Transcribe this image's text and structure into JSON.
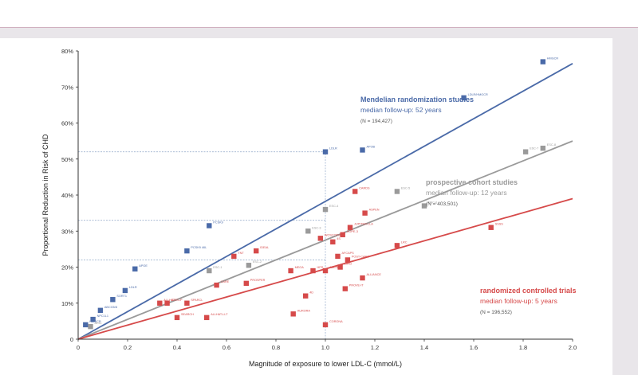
{
  "chart_data": {
    "type": "scatter",
    "title": "",
    "xlabel": "Magnitude of exposure to lower LDL-C (mmol/L)",
    "ylabel": "Proportional Reduction in Risk of CHD",
    "x_ticks": [
      "0",
      "0.2",
      "0.4",
      "0.6",
      "0.8",
      "1.0",
      "1.2",
      "1.4",
      "1.6",
      "1.8",
      "2.0"
    ],
    "x_values": [
      0,
      0.2,
      0.4,
      0.6,
      0.8,
      1.0,
      1.2,
      1.4,
      1.6,
      1.8,
      2.0
    ],
    "y_ticks": [
      "0",
      "10%",
      "20%",
      "30%",
      "40%",
      "50%",
      "60%",
      "70%",
      "80%"
    ],
    "xlim": [
      0,
      2.0
    ],
    "ylim": [
      0,
      80
    ],
    "grid": false,
    "series": [
      {
        "group": "Mendelian randomization studies",
        "followup": "median follow-up: 52 years",
        "n": "(N = 194,427)",
        "color": "#4a6aa8",
        "fit_end": [
          2.0,
          76.5
        ],
        "points": [
          {
            "x": 0.03,
            "y": 4.0,
            "label": "HMGCR"
          },
          {
            "x": 0.06,
            "y": 5.5,
            "label": "NPC1L1"
          },
          {
            "x": 0.09,
            "y": 8.0,
            "label": "ABCG5/8"
          },
          {
            "x": 0.14,
            "y": 11.0,
            "label": "SORT1"
          },
          {
            "x": 0.19,
            "y": 13.5,
            "label": "LDLR"
          },
          {
            "x": 0.23,
            "y": 19.5,
            "label": "APOE"
          },
          {
            "x": 0.44,
            "y": 24.5,
            "label": "PCSK9 46L"
          },
          {
            "x": 0.53,
            "y": 31.5,
            "label": "PCSK9"
          },
          {
            "x": 1.0,
            "y": 52.0,
            "label": "LDLR"
          },
          {
            "x": 1.15,
            "y": 52.5,
            "label": "APOB"
          },
          {
            "x": 1.56,
            "y": 67.0,
            "label": "LDLR/HMGCR"
          },
          {
            "x": 1.88,
            "y": 77.0,
            "label": "HMGCR"
          }
        ]
      },
      {
        "group": "prospective cohort studies",
        "followup": "median follow-up: 12 years",
        "n": "(N = 403,501)",
        "color": "#9a9a9a",
        "fit_end": [
          2.0,
          55.0
        ],
        "points": [
          {
            "x": 0.05,
            "y": 3.5,
            "label": "ARIC"
          },
          {
            "x": 0.53,
            "y": 19.0,
            "label": "ESC-1"
          },
          {
            "x": 0.69,
            "y": 20.5,
            "label": "ESC-2"
          },
          {
            "x": 0.93,
            "y": 30.0,
            "label": "ESC-3"
          },
          {
            "x": 1.0,
            "y": 36.0,
            "label": "ESC-4"
          },
          {
            "x": 1.29,
            "y": 41.0,
            "label": "ESC-5"
          },
          {
            "x": 1.4,
            "y": 37.0,
            "label": "ESC-6"
          },
          {
            "x": 1.81,
            "y": 52.0,
            "label": "ESC-7"
          },
          {
            "x": 1.88,
            "y": 53.0,
            "label": "ESC-8"
          }
        ]
      },
      {
        "group": "randomized controlled trials",
        "followup": "median follow-up: 5 years",
        "n": "(N = 196,552)",
        "color": "#d64a4a",
        "fit_end": [
          2.0,
          39.0
        ],
        "points": [
          {
            "x": 0.33,
            "y": 10.0,
            "label": "ALLHAT"
          },
          {
            "x": 0.36,
            "y": 10.0,
            "label": "GISSI-P"
          },
          {
            "x": 0.4,
            "y": 6.0,
            "label": "SEARCH"
          },
          {
            "x": 0.44,
            "y": 10.0,
            "label": "SPARCL"
          },
          {
            "x": 0.52,
            "y": 6.0,
            "label": "ALLHAT-LLT"
          },
          {
            "x": 0.56,
            "y": 15.0,
            "label": "CARE"
          },
          {
            "x": 0.63,
            "y": 23.0,
            "label": "TNT"
          },
          {
            "x": 0.68,
            "y": 15.5,
            "label": "PROSPER"
          },
          {
            "x": 0.72,
            "y": 24.5,
            "label": "IDEAL"
          },
          {
            "x": 0.86,
            "y": 19.0,
            "label": "MEGA"
          },
          {
            "x": 0.87,
            "y": 7.0,
            "label": "AURORA"
          },
          {
            "x": 0.92,
            "y": 12.0,
            "label": "4D"
          },
          {
            "x": 0.95,
            "y": 19.0,
            "label": "HPS"
          },
          {
            "x": 0.98,
            "y": 28.0,
            "label": "WOSCOPS"
          },
          {
            "x": 1.0,
            "y": 19.0,
            "label": "ASCOT"
          },
          {
            "x": 1.0,
            "y": 4.0,
            "label": "CORONA"
          },
          {
            "x": 1.03,
            "y": 27.0,
            "label": "4S"
          },
          {
            "x": 1.05,
            "y": 23.0,
            "label": "AFCAPS"
          },
          {
            "x": 1.06,
            "y": 20.0,
            "label": "LIPID"
          },
          {
            "x": 1.07,
            "y": 29.0,
            "label": "HOPE-3"
          },
          {
            "x": 1.08,
            "y": 14.0,
            "label": "PROVE-IT"
          },
          {
            "x": 1.09,
            "y": 22.0,
            "label": "POST-CABG"
          },
          {
            "x": 1.1,
            "y": 31.0,
            "label": "JUPITER-LLA"
          },
          {
            "x": 1.12,
            "y": 41.0,
            "label": "CARDS"
          },
          {
            "x": 1.15,
            "y": 17.0,
            "label": "ALLIANCE"
          },
          {
            "x": 1.16,
            "y": 35.0,
            "label": "ASPEN"
          },
          {
            "x": 1.29,
            "y": 26.0,
            "label": "LRC"
          },
          {
            "x": 1.67,
            "y": 31.0,
            "label": "SSSS"
          }
        ]
      }
    ],
    "reference_lines": [
      {
        "x": 1.0,
        "y": 52.0
      },
      {
        "x": 1.0,
        "y": 33.0
      },
      {
        "x": 1.0,
        "y": 22.0
      }
    ]
  }
}
